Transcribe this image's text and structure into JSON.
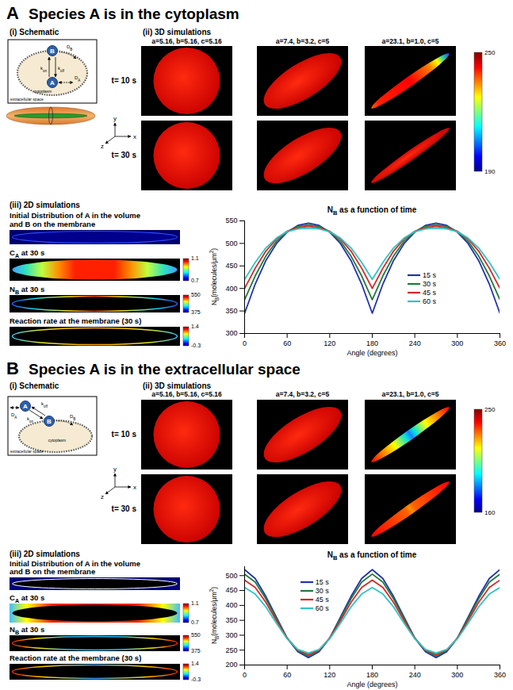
{
  "panels": [
    {
      "letter": "A",
      "title": "Species A is in the cytoplasm",
      "schematic": {
        "label": "(i) Schematic",
        "species": [
          "A",
          "B"
        ],
        "rates": [
          [
            "k",
            {
              "sub": "on"
            }
          ],
          [
            "k",
            {
              "sub": "off"
            }
          ]
        ],
        "diffusion": [
          [
            "D",
            {
              "sub": "A"
            }
          ],
          [
            "D",
            {
              "sub": "B"
            }
          ]
        ],
        "regions": [
          "cytoplasm",
          "extracellular space"
        ]
      },
      "sim3d": {
        "label": "(ii) 3D simulations",
        "shapes": [
          "a=5.16, b=5.16, c=5.16",
          "a=7.4, b=3.2, c=5",
          "a=23.1, b=1.0, c=5"
        ],
        "times": [
          "t= 10 s",
          "t= 30 s"
        ],
        "axes": [
          "y",
          "x",
          "z"
        ],
        "colorbar": {
          "range": [
            190,
            250
          ],
          "ticks": [
            190,
            250
          ]
        }
      },
      "sim2d": {
        "label": "(iii) 2D simulations",
        "maps": [
          {
            "lines": [
              [
                "Initial Distribution of A in the volume"
              ],
              [
                "and B on the membrane"
              ]
            ]
          },
          {
            "lines": [
              [
                "C",
                {
                  "sub": "A"
                },
                " at 30 s"
              ]
            ],
            "colorbar": {
              "range": [
                0.7,
                1.1
              ],
              "ticks": [
                0.7,
                1.1
              ]
            }
          },
          {
            "lines": [
              [
                "N",
                {
                  "sub": "B"
                },
                " at 30 s"
              ]
            ],
            "colorbar": {
              "range": [
                375,
                550
              ],
              "ticks": [
                375,
                550
              ]
            }
          },
          {
            "lines": [
              [
                "Reaction rate at the membrane (30 s)"
              ]
            ],
            "colorbar": {
              "range": [
                -0.3,
                1.4
              ],
              "ticks": [
                -0.3,
                1.4
              ]
            }
          }
        ]
      }
    },
    {
      "letter": "B",
      "title": "Species A is in the extracellular space",
      "schematic": {
        "label": "(i) Schematic",
        "species": [
          "A",
          "B"
        ],
        "rates": [
          [
            "k",
            {
              "sub": "on"
            }
          ],
          [
            "k",
            {
              "sub": "off"
            }
          ]
        ],
        "diffusion": [
          [
            "D",
            {
              "sub": "A"
            }
          ],
          [
            "D",
            {
              "sub": "B"
            }
          ]
        ],
        "regions": [
          "cytoplasm",
          "extracellular space"
        ]
      },
      "sim3d": {
        "label": "(ii) 3D simulations",
        "shapes": [
          "a=5.16, b=5.16, c=5.16",
          "a=7.4, b=3.2, c=5",
          "a=23.1, b=1.0, c=5"
        ],
        "times": [
          "t= 10 s",
          "t= 30 s"
        ],
        "axes": [
          "y",
          "x",
          "z"
        ],
        "colorbar": {
          "range": [
            160,
            250
          ],
          "ticks": [
            160,
            250
          ]
        }
      },
      "sim2d": {
        "label": "(iii) 2D simulations",
        "maps": [
          {
            "lines": [
              [
                "Initial Distribution of A in the volume"
              ],
              [
                "and B on the membrane"
              ]
            ]
          },
          {
            "lines": [
              [
                "C",
                {
                  "sub": "A"
                },
                " at 30 s"
              ]
            ],
            "colorbar": {
              "range": [
                0.7,
                1.1
              ],
              "ticks": [
                0.7,
                1.1
              ]
            }
          },
          {
            "lines": [
              [
                "N",
                {
                  "sub": "B"
                },
                " at 30 s"
              ]
            ],
            "colorbar": {
              "range": [
                375,
                550
              ],
              "ticks": [
                375,
                550
              ]
            }
          },
          {
            "lines": [
              [
                "Reaction rate at the membrane (30 s)"
              ]
            ],
            "colorbar": {
              "range": [
                -0.3,
                1.4
              ],
              "ticks": [
                -0.3,
                1.4
              ]
            }
          }
        ]
      }
    }
  ],
  "chart_data": [
    {
      "type": "line",
      "title": [
        "N",
        {
          "sub": "B"
        },
        " as a function of time"
      ],
      "x_label": "Angle (degrees)",
      "y_label": [
        "N",
        {
          "sub": "B"
        },
        "(molecules/μm",
        {
          "sup": "2"
        },
        ")"
      ],
      "x": [
        0,
        15,
        30,
        45,
        60,
        75,
        90,
        105,
        120,
        135,
        150,
        165,
        180,
        195,
        210,
        225,
        240,
        255,
        270,
        285,
        300,
        315,
        330,
        345,
        360
      ],
      "xlim": [
        0,
        360
      ],
      "xticks": [
        0,
        60,
        120,
        180,
        240,
        300,
        360
      ],
      "ylim": [
        300,
        550
      ],
      "yticks": [
        300,
        350,
        400,
        450,
        500,
        550
      ],
      "grid": false,
      "legend": "lower right",
      "series": [
        {
          "name": "15 s",
          "color": "#2233aa",
          "values": [
            345,
            410,
            462,
            500,
            525,
            540,
            545,
            540,
            525,
            500,
            462,
            410,
            345,
            410,
            462,
            500,
            525,
            540,
            545,
            540,
            525,
            500,
            462,
            410,
            345
          ]
        },
        {
          "name": "30 s",
          "color": "#1e7a3c",
          "values": [
            375,
            428,
            472,
            505,
            526,
            538,
            541,
            538,
            526,
            505,
            472,
            428,
            375,
            428,
            472,
            505,
            526,
            538,
            541,
            538,
            526,
            505,
            472,
            428,
            375
          ]
        },
        {
          "name": "45 s",
          "color": "#d62728",
          "values": [
            400,
            445,
            483,
            510,
            527,
            535,
            538,
            535,
            527,
            510,
            483,
            445,
            400,
            445,
            483,
            510,
            527,
            535,
            538,
            535,
            527,
            510,
            483,
            445,
            400
          ]
        },
        {
          "name": "60 s",
          "color": "#2ec4c4",
          "values": [
            420,
            458,
            490,
            512,
            526,
            532,
            534,
            532,
            526,
            512,
            490,
            458,
            420,
            458,
            490,
            512,
            526,
            532,
            534,
            532,
            526,
            512,
            490,
            458,
            420
          ]
        }
      ]
    },
    {
      "type": "line",
      "title": [
        "N",
        {
          "sub": "B"
        },
        " as a function of time"
      ],
      "x_label": "Angle (degrees)",
      "y_label": [
        "N",
        {
          "sub": "B"
        },
        "(molecules/μm",
        {
          "sup": "2"
        },
        ")"
      ],
      "x": [
        0,
        15,
        30,
        45,
        60,
        75,
        90,
        105,
        120,
        135,
        150,
        165,
        180,
        195,
        210,
        225,
        240,
        255,
        270,
        285,
        300,
        315,
        330,
        345,
        360
      ],
      "xlim": [
        0,
        360
      ],
      "xticks": [
        0,
        60,
        120,
        180,
        240,
        300,
        360
      ],
      "ylim": [
        200,
        530
      ],
      "yticks": [
        200,
        250,
        300,
        350,
        400,
        450,
        500
      ],
      "grid": false,
      "legend": "upper left",
      "series": [
        {
          "name": "15 s",
          "color": "#2233aa",
          "values": [
            520,
            490,
            430,
            360,
            290,
            245,
            225,
            245,
            290,
            360,
            430,
            490,
            520,
            490,
            430,
            360,
            290,
            245,
            225,
            245,
            290,
            360,
            430,
            490,
            520
          ]
        },
        {
          "name": "30 s",
          "color": "#1e7a3c",
          "values": [
            505,
            478,
            422,
            355,
            290,
            248,
            230,
            248,
            290,
            355,
            422,
            478,
            505,
            478,
            422,
            355,
            290,
            248,
            230,
            248,
            290,
            355,
            422,
            478,
            505
          ]
        },
        {
          "name": "45 s",
          "color": "#d62728",
          "values": [
            485,
            460,
            410,
            348,
            290,
            250,
            235,
            250,
            290,
            348,
            410,
            460,
            485,
            460,
            410,
            348,
            290,
            250,
            235,
            250,
            290,
            348,
            410,
            460,
            485
          ]
        },
        {
          "name": "60 s",
          "color": "#2ec4c4",
          "values": [
            460,
            438,
            395,
            340,
            288,
            252,
            240,
            252,
            288,
            340,
            395,
            438,
            460,
            438,
            395,
            340,
            288,
            252,
            240,
            252,
            288,
            340,
            395,
            438,
            460
          ]
        }
      ]
    }
  ]
}
